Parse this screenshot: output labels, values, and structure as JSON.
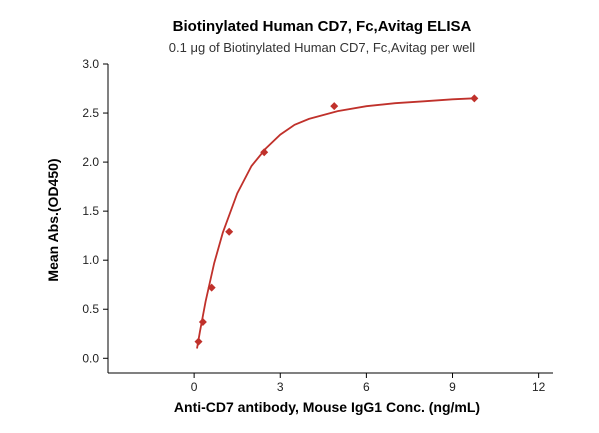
{
  "chart_data": {
    "type": "scatter",
    "title": "Biotinylated Human CD7, Fc,Avitag ELISA",
    "subtitle": "0.1 μg of Biotinylated Human CD7, Fc,Avitag per well",
    "xlabel": "Anti-CD7 antibody, Mouse IgG1 Conc. (ng/mL)",
    "ylabel": "Mean Abs.(OD450)",
    "xlim": [
      -3,
      12.5
    ],
    "ylim": [
      -0.15,
      3.0
    ],
    "xticks": [
      0,
      3,
      6,
      9,
      12
    ],
    "yticks": [
      0.0,
      0.5,
      1.0,
      1.5,
      2.0,
      2.5,
      3.0
    ],
    "xtick_labels": [
      "0",
      "3",
      "6",
      "9",
      "12"
    ],
    "ytick_labels": [
      "0.0",
      "0.5",
      "1.0",
      "1.5",
      "2.0",
      "2.5",
      "3.0"
    ],
    "grid": false,
    "color": "#c0312b",
    "series": [
      {
        "marker": "diamond",
        "x": [
          0.152,
          0.305,
          0.61,
          1.22,
          2.44,
          4.88,
          9.76
        ],
        "y": [
          0.17,
          0.37,
          0.72,
          1.29,
          2.1,
          2.57,
          2.65
        ]
      }
    ],
    "fit_curve": {
      "model": "4PL",
      "x": [
        0.1,
        0.2,
        0.4,
        0.7,
        1.0,
        1.5,
        2.0,
        2.5,
        3.0,
        3.5,
        4.0,
        5.0,
        6.0,
        7.0,
        8.0,
        9.0,
        9.76
      ],
      "y": [
        0.1,
        0.27,
        0.58,
        0.97,
        1.28,
        1.68,
        1.96,
        2.14,
        2.28,
        2.38,
        2.44,
        2.52,
        2.57,
        2.6,
        2.62,
        2.64,
        2.65
      ]
    }
  }
}
